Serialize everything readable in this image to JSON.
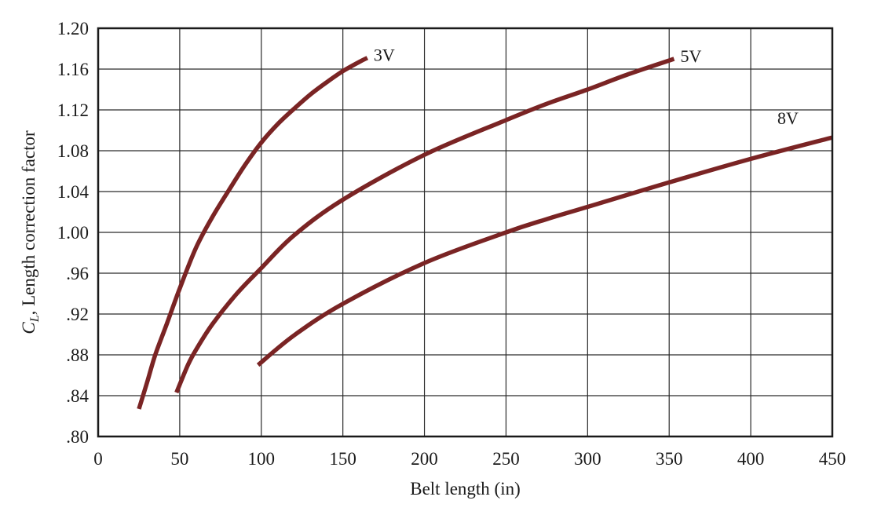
{
  "chart_data": {
    "type": "line",
    "title": "",
    "xlabel": "Belt length (in)",
    "ylabel": "C_L, Length correction factor",
    "ylabel_parts": {
      "symbol": "C",
      "subscript": "L",
      "rest": ", Length correction factor"
    },
    "xlim": [
      0,
      450
    ],
    "ylim": [
      0.8,
      1.2
    ],
    "grid": true,
    "legend": "none (series labeled inline at curve ends)",
    "line_color": "#7a2424",
    "x_ticks": [
      0,
      50,
      100,
      150,
      200,
      250,
      300,
      350,
      400,
      450
    ],
    "x_tick_labels": [
      "0",
      "50",
      "100",
      "150",
      "200",
      "250",
      "300",
      "350",
      "400",
      "450"
    ],
    "y_ticks": [
      0.8,
      0.84,
      0.88,
      0.92,
      0.96,
      1.0,
      1.04,
      1.08,
      1.12,
      1.16,
      1.2
    ],
    "y_tick_labels": [
      ".80",
      ".84",
      ".88",
      ".92",
      ".96",
      "1.00",
      "1.04",
      "1.08",
      "1.12",
      "1.16",
      "1.20"
    ],
    "series": [
      {
        "name": "3V",
        "x": [
          25,
          30,
          35,
          42,
          50,
          60,
          70,
          80,
          90,
          100,
          110,
          120,
          130,
          140,
          150,
          160,
          165
        ],
        "y": [
          0.827,
          0.853,
          0.88,
          0.91,
          0.945,
          0.985,
          1.015,
          1.041,
          1.066,
          1.088,
          1.106,
          1.121,
          1.135,
          1.147,
          1.158,
          1.167,
          1.171
        ]
      },
      {
        "name": "5V",
        "x": [
          48,
          55,
          60,
          70,
          85,
          100,
          120,
          150,
          200,
          250,
          275,
          300,
          325,
          353
        ],
        "y": [
          0.843,
          0.87,
          0.885,
          0.91,
          0.94,
          0.965,
          0.997,
          1.032,
          1.076,
          1.11,
          1.126,
          1.14,
          1.155,
          1.17
        ]
      },
      {
        "name": "8V",
        "x": [
          98,
          120,
          150,
          200,
          250,
          275,
          300,
          350,
          400,
          450
        ],
        "y": [
          0.87,
          0.899,
          0.93,
          0.97,
          1.0,
          1.013,
          1.025,
          1.049,
          1.072,
          1.093
        ]
      }
    ]
  }
}
